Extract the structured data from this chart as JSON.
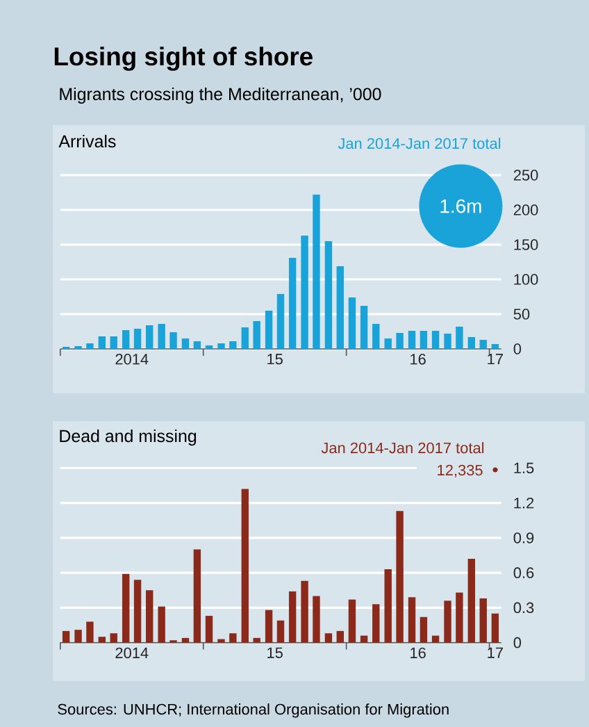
{
  "chart_data": [
    {
      "type": "bar",
      "title": "Losing sight of shore",
      "subtitle": "Migrants crossing the Mediterranean, ’000",
      "ylabel": "Arrivals",
      "color": "#1aa3d9",
      "grid": "y",
      "annotations": [
        "Jan 2014-Jan 2017 total",
        "1.6m"
      ],
      "x": [
        "2014-01-16",
        "2014-02-15",
        "2014-03-16",
        "2014-04-16",
        "2014-05-16",
        "2014-06-16",
        "2014-07-16",
        "2014-08-16",
        "2014-09-16",
        "2014-10-16",
        "2014-11-16",
        "2014-12-16",
        "2015-01-16",
        "2015-02-15",
        "2015-03-16",
        "2015-04-16",
        "2015-05-16",
        "2015-06-16",
        "2015-07-16",
        "2015-08-16",
        "2015-09-16",
        "2015-10-16",
        "2015-11-16",
        "2015-12-16",
        "2016-01-16",
        "2016-02-15",
        "2016-03-16",
        "2016-04-16",
        "2016-05-16",
        "2016-06-16",
        "2016-07-16",
        "2016-08-16",
        "2016-09-16",
        "2016-10-16",
        "2016-11-16",
        "2016-12-16",
        "2017-01-16"
      ],
      "values": [
        3,
        4,
        8,
        18,
        18,
        27,
        29,
        34,
        36,
        24,
        15,
        11,
        5,
        8,
        11,
        31,
        40,
        55,
        79,
        131,
        163,
        222,
        155,
        119,
        74,
        62,
        36,
        15,
        23,
        26,
        26,
        26,
        22,
        32,
        17,
        13,
        7
      ],
      "xlim": [
        "2014-01-01",
        "2017-02-01"
      ],
      "xticks": [
        {
          "value": "2014-01-01",
          "label": null
        },
        {
          "value": "2015-01-01",
          "label": null
        },
        {
          "value": "2016-01-01",
          "label": null
        },
        {
          "value": "2017-01-01",
          "label": null
        },
        {
          "value": "2014-07-01",
          "label": "2014"
        },
        {
          "value": "2015-07-01",
          "label": "15"
        },
        {
          "value": "2016-07-01",
          "label": "16"
        },
        {
          "value": "2017-01-16",
          "label": "17"
        }
      ],
      "ylim": [
        0,
        250
      ],
      "yticks": [
        0,
        50,
        100,
        150,
        200,
        250
      ]
    },
    {
      "type": "bar",
      "ylabel": "Dead and missing",
      "color": "#8b2a1a",
      "grid": "y",
      "annotations": [
        "Jan 2014-Jan 2017 total",
        "12,335",
        "Sources: UNHCR; International Organisation for Migration"
      ],
      "x": [
        "2014-01-16",
        "2014-02-15",
        "2014-03-16",
        "2014-04-16",
        "2014-05-16",
        "2014-06-16",
        "2014-07-16",
        "2014-08-16",
        "2014-09-16",
        "2014-10-16",
        "2014-11-16",
        "2014-12-16",
        "2015-01-16",
        "2015-02-15",
        "2015-03-16",
        "2015-04-16",
        "2015-05-16",
        "2015-06-16",
        "2015-07-16",
        "2015-08-16",
        "2015-09-16",
        "2015-10-16",
        "2015-11-16",
        "2015-12-16",
        "2016-01-16",
        "2016-02-15",
        "2016-03-16",
        "2016-04-16",
        "2016-05-16",
        "2016-06-16",
        "2016-07-16",
        "2016-08-16",
        "2016-09-16",
        "2016-10-16",
        "2016-11-16",
        "2016-12-16",
        "2017-01-16"
      ],
      "values": [
        0.1,
        0.11,
        0.18,
        0.05,
        0.08,
        0.59,
        0.54,
        0.45,
        0.31,
        0.02,
        0.04,
        0.8,
        0.23,
        0.03,
        0.08,
        1.32,
        0.04,
        0.28,
        0.19,
        0.44,
        0.53,
        0.4,
        0.08,
        0.1,
        0.37,
        0.06,
        0.33,
        0.63,
        1.13,
        0.39,
        0.22,
        0.06,
        0.36,
        0.43,
        0.72,
        0.38,
        0.25
      ],
      "xlim": [
        "2014-01-01",
        "2017-02-01"
      ],
      "xticks": [
        {
          "value": "2014-01-01",
          "label": null
        },
        {
          "value": "2015-01-01",
          "label": null
        },
        {
          "value": "2016-01-01",
          "label": null
        },
        {
          "value": "2017-01-01",
          "label": null
        },
        {
          "value": "2014-07-01",
          "label": "2014"
        },
        {
          "value": "2015-07-01",
          "label": "15"
        },
        {
          "value": "2016-07-01",
          "label": "16"
        },
        {
          "value": "2017-01-16",
          "label": "17"
        }
      ],
      "ylim": [
        0,
        1.5
      ],
      "yticks": [
        0,
        0.3,
        0.6,
        0.9,
        1.2,
        1.5
      ]
    }
  ]
}
